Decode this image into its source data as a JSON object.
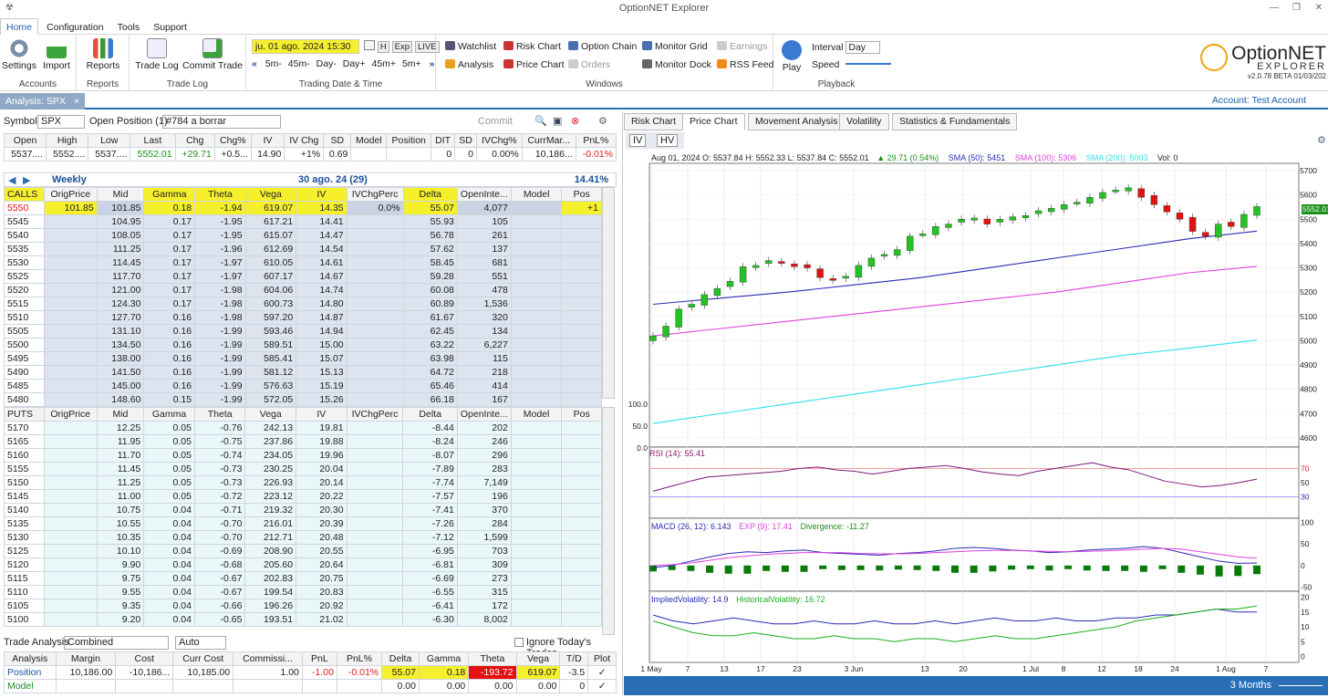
{
  "app": {
    "title": "OptionNET Explorer",
    "logo_text": "OptionNET",
    "logo_sub": "EXPLORER",
    "version": "v2.0.78 BETA 01/03/202"
  },
  "menu": [
    "Home",
    "Configuration",
    "Tools",
    "Support"
  ],
  "ribbon": {
    "accounts": {
      "settings": "Settings",
      "import": "Import",
      "group": "Accounts"
    },
    "reports": {
      "label": "Reports",
      "group": "Reports"
    },
    "tradelog": {
      "trade_log": "Trade Log",
      "commit": "Commit Trade",
      "group": "Trade Log"
    },
    "datetime": {
      "value": "ju. 01 ago. 2024 15:30",
      "h": "H",
      "exp": "Exp",
      "live": "LIVE",
      "steps": [
        "5m-",
        "45m-",
        "Day-",
        "Day+",
        "45m+",
        "5m+"
      ],
      "group": "Trading Date & Time"
    },
    "windows": {
      "watchlist": "Watchlist",
      "analysis": "Analysis",
      "risk": "Risk Chart",
      "price": "Price Chart",
      "option_chain": "Option Chain",
      "orders": "Orders",
      "monitor_grid": "Monitor Grid",
      "monitor_dock": "Monitor Dock",
      "earnings": "Earnings",
      "rss": "RSS Feed",
      "group": "Windows"
    },
    "playback": {
      "play": "Play",
      "interval_label": "Interval",
      "interval": "Day",
      "speed": "Speed",
      "group": "Playback"
    }
  },
  "doc_tab": "Analysis: SPX",
  "account": "Account: Test Account",
  "toolbar": {
    "symbol_label": "Symbol",
    "symbol": "SPX",
    "open_position": "Open Position (1)",
    "position_name": "#784 a borrar",
    "commit": "Commit"
  },
  "quote": {
    "headers": [
      "Open",
      "High",
      "Low",
      "Last",
      "Chg",
      "Chg%",
      "IV",
      "IV Chg",
      "SD",
      "Model",
      "Position",
      "DIT",
      "SD",
      "IVChg%",
      "CurrMar...",
      "PnL%"
    ],
    "values": [
      "5537....",
      "5552....",
      "5537....",
      "5552.01",
      "+29.71",
      "+0.5...",
      "14.90",
      "+1%",
      "0.69",
      "",
      "",
      "0",
      "0",
      "0.00%",
      "10,186...",
      "-0.01%"
    ]
  },
  "expiry": {
    "label": "Weekly",
    "date": "30 ago. 24 (29)",
    "pct": "14.41%"
  },
  "calls": {
    "headers": [
      "CALLS",
      "OrigPrice",
      "Mid",
      "Gamma",
      "Theta",
      "Vega",
      "IV",
      "IVChgPerc",
      "Delta",
      "OpenInte...",
      "Model",
      "Pos"
    ],
    "rows": [
      [
        "5550",
        "101.85",
        "101.85",
        "0.18",
        "-1.94",
        "619.07",
        "14.35",
        "0.0%",
        "55.07",
        "4,077",
        "",
        "+1"
      ],
      [
        "5545",
        "",
        "104.95",
        "0.17",
        "-1.95",
        "617.21",
        "14.41",
        "",
        "55.93",
        "105",
        "",
        ""
      ],
      [
        "5540",
        "",
        "108.05",
        "0.17",
        "-1.95",
        "615.07",
        "14.47",
        "",
        "56.78",
        "261",
        "",
        ""
      ],
      [
        "5535",
        "",
        "111.25",
        "0.17",
        "-1.96",
        "612.69",
        "14.54",
        "",
        "57.62",
        "137",
        "",
        ""
      ],
      [
        "5530",
        "",
        "114.45",
        "0.17",
        "-1.97",
        "610.05",
        "14.61",
        "",
        "58.45",
        "681",
        "",
        ""
      ],
      [
        "5525",
        "",
        "117.70",
        "0.17",
        "-1.97",
        "607.17",
        "14.67",
        "",
        "59.28",
        "551",
        "",
        ""
      ],
      [
        "5520",
        "",
        "121.00",
        "0.17",
        "-1.98",
        "604.06",
        "14.74",
        "",
        "60.08",
        "478",
        "",
        ""
      ],
      [
        "5515",
        "",
        "124.30",
        "0.17",
        "-1.98",
        "600.73",
        "14.80",
        "",
        "60.89",
        "1,536",
        "",
        ""
      ],
      [
        "5510",
        "",
        "127.70",
        "0.16",
        "-1.98",
        "597.20",
        "14.87",
        "",
        "61.67",
        "320",
        "",
        ""
      ],
      [
        "5505",
        "",
        "131.10",
        "0.16",
        "-1.99",
        "593.46",
        "14.94",
        "",
        "62.45",
        "134",
        "",
        ""
      ],
      [
        "5500",
        "",
        "134.50",
        "0.16",
        "-1.99",
        "589.51",
        "15.00",
        "",
        "63.22",
        "6,227",
        "",
        ""
      ],
      [
        "5495",
        "",
        "138.00",
        "0.16",
        "-1.99",
        "585.41",
        "15.07",
        "",
        "63.98",
        "115",
        "",
        ""
      ],
      [
        "5490",
        "",
        "141.50",
        "0.16",
        "-1.99",
        "581.12",
        "15.13",
        "",
        "64.72",
        "218",
        "",
        ""
      ],
      [
        "5485",
        "",
        "145.00",
        "0.16",
        "-1.99",
        "576.63",
        "15.19",
        "",
        "65.46",
        "414",
        "",
        ""
      ],
      [
        "5480",
        "",
        "148.60",
        "0.15",
        "-1.99",
        "572.05",
        "15.26",
        "",
        "66.18",
        "167",
        "",
        ""
      ]
    ]
  },
  "puts": {
    "headers": [
      "PUTS",
      "OrigPrice",
      "Mid",
      "Gamma",
      "Theta",
      "Vega",
      "IV",
      "IVChgPerc",
      "Delta",
      "OpenInte...",
      "Model",
      "Pos"
    ],
    "rows": [
      [
        "5170",
        "",
        "12.25",
        "0.05",
        "-0.76",
        "242.13",
        "19.81",
        "",
        "-8.44",
        "202",
        "",
        ""
      ],
      [
        "5165",
        "",
        "11.95",
        "0.05",
        "-0.75",
        "237.86",
        "19.88",
        "",
        "-8.24",
        "246",
        "",
        ""
      ],
      [
        "5160",
        "",
        "11.70",
        "0.05",
        "-0.74",
        "234.05",
        "19.96",
        "",
        "-8.07",
        "296",
        "",
        ""
      ],
      [
        "5155",
        "",
        "11.45",
        "0.05",
        "-0.73",
        "230.25",
        "20.04",
        "",
        "-7.89",
        "283",
        "",
        ""
      ],
      [
        "5150",
        "",
        "11.25",
        "0.05",
        "-0.73",
        "226.93",
        "20.14",
        "",
        "-7.74",
        "7,149",
        "",
        ""
      ],
      [
        "5145",
        "",
        "11.00",
        "0.05",
        "-0.72",
        "223.12",
        "20.22",
        "",
        "-7.57",
        "196",
        "",
        ""
      ],
      [
        "5140",
        "",
        "10.75",
        "0.04",
        "-0.71",
        "219.32",
        "20.30",
        "",
        "-7.41",
        "370",
        "",
        ""
      ],
      [
        "5135",
        "",
        "10.55",
        "0.04",
        "-0.70",
        "216.01",
        "20.39",
        "",
        "-7.26",
        "284",
        "",
        ""
      ],
      [
        "5130",
        "",
        "10.35",
        "0.04",
        "-0.70",
        "212.71",
        "20.48",
        "",
        "-7.12",
        "1,599",
        "",
        ""
      ],
      [
        "5125",
        "",
        "10.10",
        "0.04",
        "-0.69",
        "208.90",
        "20.55",
        "",
        "-6.95",
        "703",
        "",
        ""
      ],
      [
        "5120",
        "",
        "9.90",
        "0.04",
        "-0.68",
        "205.60",
        "20.64",
        "",
        "-6.81",
        "309",
        "",
        ""
      ],
      [
        "5115",
        "",
        "9.75",
        "0.04",
        "-0.67",
        "202.83",
        "20.75",
        "",
        "-6.69",
        "273",
        "",
        ""
      ],
      [
        "5110",
        "",
        "9.55",
        "0.04",
        "-0.67",
        "199.54",
        "20.83",
        "",
        "-6.55",
        "315",
        "",
        ""
      ],
      [
        "5105",
        "",
        "9.35",
        "0.04",
        "-0.66",
        "196.26",
        "20.92",
        "",
        "-6.41",
        "172",
        "",
        ""
      ],
      [
        "5100",
        "",
        "9.20",
        "0.04",
        "-0.65",
        "193.51",
        "21.02",
        "",
        "-6.30",
        "8,002",
        "",
        ""
      ]
    ]
  },
  "trade_analysis": {
    "label": "Trade Analysis",
    "mode": "Combined",
    "auto": "Auto",
    "ignore": "Ignore Today's Trades",
    "headers": [
      "Analysis",
      "Margin",
      "Cost",
      "Curr Cost",
      "Commissi...",
      "PnL",
      "PnL%",
      "Delta",
      "Gamma",
      "Theta",
      "Vega",
      "T/D",
      "Plot"
    ],
    "position": [
      "Position",
      "10,186.00",
      "-10,186...",
      "10,185.00",
      "1.00",
      "-1.00",
      "-0.01%",
      "55.07",
      "0.18",
      "-193.72",
      "619.07",
      "-3.5",
      "✓"
    ],
    "model": [
      "Model",
      "",
      "",
      "",
      "",
      "",
      "",
      "0.00",
      "0.00",
      "0.00",
      "0.00",
      "0",
      "✓"
    ]
  },
  "chart_tabs": [
    "Risk Chart",
    "Price Chart",
    "Movement Analysis",
    "Volatility",
    "Statistics & Fundamentals"
  ],
  "chart_toggles": [
    "IV",
    "HV"
  ],
  "ohlc_line": {
    "text": "Aug 01, 2024 O: 5537.84 H: 5552.33 L: 5537.84 C: 5552.01",
    "chg": "▲ 29.71 (0.54%)",
    "sma50": "SMA (50): 5451",
    "sma100": "SMA (100): 5306",
    "sma200": "SMA (200): 5003",
    "vol": "Vol: 0"
  },
  "rsi_label": "RSI (14): 55.41",
  "macd_label": "MACD (26, 12): 6.143",
  "macd_exp": "EXP (9): 17.41",
  "macd_div": "Divergence: -11.27",
  "iv_label": "ImpliedVolatility: 14.9",
  "hv_label": "HistoricalVolatility: 16.72",
  "price_axis": [
    "5700",
    "5600",
    "5500",
    "5400",
    "5300",
    "5200",
    "5100",
    "5000",
    "4900",
    "4800",
    "4700",
    "4600"
  ],
  "last_price_tag": "5552.01",
  "vol_axis_left": [
    "100.0",
    "50.0",
    "0.0"
  ],
  "rsi_axis": [
    "70",
    "50",
    "30"
  ],
  "macd_axis": [
    "100",
    "50",
    "0",
    "-50"
  ],
  "ivhv_axis": [
    "20",
    "15",
    "10",
    "5",
    "0"
  ],
  "x_axis": [
    "1 May",
    "7",
    "13",
    "17",
    "23",
    "3 Jun",
    "13",
    "20",
    "1 Jul",
    "8",
    "12",
    "18",
    "24",
    "1 Aug",
    "7"
  ],
  "range": "3 Months",
  "colors": {
    "up": "#22c322",
    "down": "#e51010",
    "sma50": "#2a2ab5",
    "sma100": "#e040e0",
    "sma200": "#2ee0ee",
    "accent": "#2a6fb5",
    "highlight": "#f5ef2c"
  },
  "chart_data": {
    "type": "candlestick",
    "series": [
      {
        "name": "SMA (50)",
        "values": [
          5150,
          5175,
          5200,
          5230,
          5260,
          5300,
          5340,
          5380,
          5420,
          5451
        ]
      },
      {
        "name": "SMA (100)",
        "values": [
          5020,
          5050,
          5080,
          5110,
          5140,
          5170,
          5200,
          5240,
          5280,
          5306
        ]
      },
      {
        "name": "SMA (200)",
        "values": [
          4660,
          4700,
          4740,
          4780,
          4820,
          4860,
          4900,
          4940,
          4970,
          5003
        ]
      }
    ],
    "closes": [
      5020,
      5060,
      5130,
      5150,
      5190,
      5215,
      5245,
      5305,
      5310,
      5330,
      5320,
      5305,
      5300,
      5260,
      5250,
      5265,
      5310,
      5340,
      5355,
      5375,
      5430,
      5440,
      5470,
      5480,
      5500,
      5505,
      5480,
      5500,
      5510,
      5515,
      5535,
      5545,
      5560,
      5570,
      5590,
      5610,
      5620,
      5630,
      5590,
      5560,
      5530,
      5500,
      5450,
      5430,
      5480,
      5470,
      5520,
      5552
    ],
    "ylim": [
      4600,
      5700
    ]
  }
}
